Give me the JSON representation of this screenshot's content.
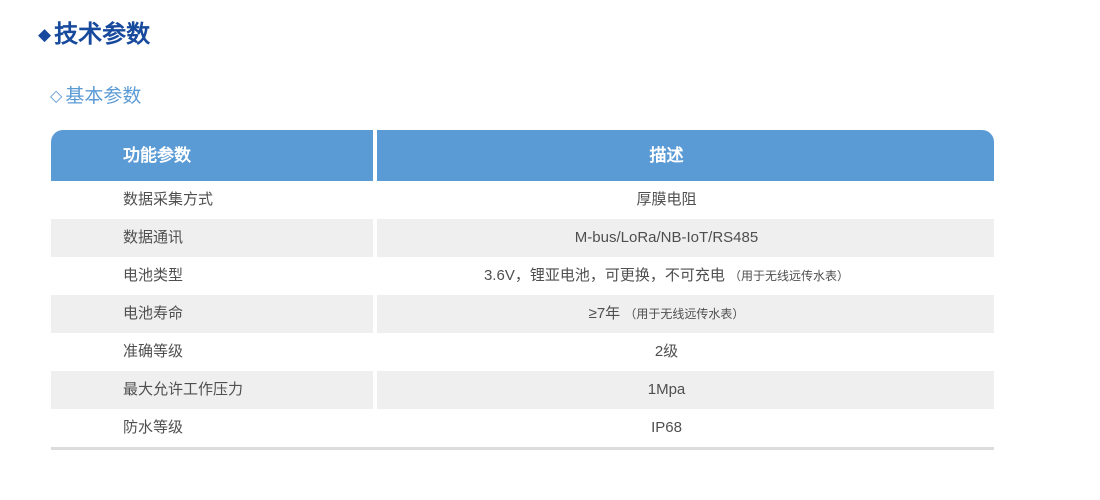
{
  "section": {
    "marker": "◆",
    "title": "技术参数"
  },
  "subsection": {
    "marker": "◇",
    "title": "基本参数"
  },
  "colors": {
    "accent_blue": "#5b9bd5",
    "title_blue": "#17499c",
    "row_alt_gray": "#efefef",
    "body_text": "#4f4f4f",
    "bottom_line": "#dcdcdc"
  },
  "table": {
    "columns": [
      {
        "label": "功能参数"
      },
      {
        "label": "描述"
      }
    ],
    "rows": [
      {
        "param": "数据采集方式",
        "desc": "厚膜电阻",
        "note": ""
      },
      {
        "param": "数据通讯",
        "desc": "M-bus/LoRa/NB-IoT/RS485",
        "note": ""
      },
      {
        "param": "电池类型",
        "desc": "3.6V，锂亚电池，可更换，不可充电",
        "note": "（用于无线远传水表）"
      },
      {
        "param": "电池寿命",
        "desc": "≥7年",
        "note": "（用于无线远传水表）"
      },
      {
        "param": "准确等级",
        "desc": "2级",
        "note": ""
      },
      {
        "param": "最大允许工作压力",
        "desc": "1Mpa",
        "note": ""
      },
      {
        "param": "防水等级",
        "desc": "IP68",
        "note": ""
      }
    ]
  }
}
